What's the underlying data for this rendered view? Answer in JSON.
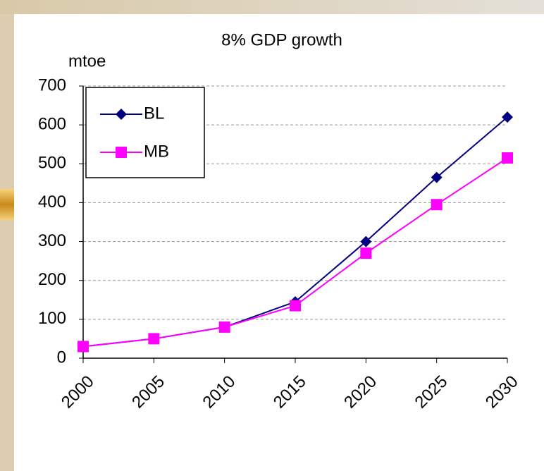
{
  "chart_data": {
    "type": "line",
    "title": "8% GDP growth",
    "y_label": "mtoe",
    "categories": [
      "2000",
      "2005",
      "2010",
      "2015",
      "2020",
      "2025",
      "2030"
    ],
    "series": [
      {
        "name": "BL",
        "color": "#000080",
        "marker": "diamond",
        "values": [
          30,
          50,
          80,
          145,
          300,
          465,
          620
        ]
      },
      {
        "name": "MB",
        "color": "#ff00ff",
        "marker": "square",
        "values": [
          30,
          50,
          80,
          135,
          270,
          395,
          515
        ]
      }
    ],
    "ylim": [
      0,
      700
    ],
    "yticks": [
      0,
      100,
      200,
      300,
      400,
      500,
      600,
      700
    ],
    "grid": true,
    "legend": "upper left"
  }
}
